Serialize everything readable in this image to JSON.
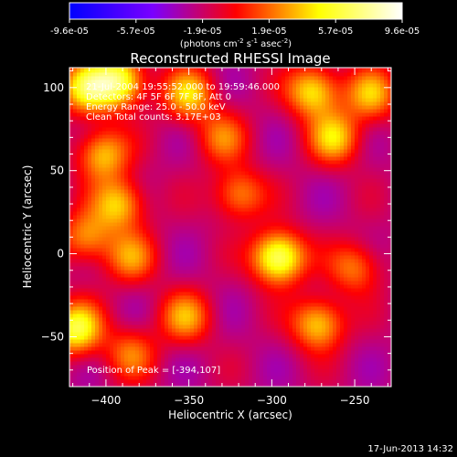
{
  "chart_data": {
    "type": "heatmap",
    "title": "Reconstructed RHESSI Image",
    "xlabel": "Heliocentric X (arcsec)",
    "ylabel": "Heliocentric Y (arcsec)",
    "xlim": [
      -422,
      -228
    ],
    "ylim": [
      -80,
      112
    ],
    "xticks": [
      -400,
      -350,
      -300,
      -250
    ],
    "yticks": [
      -50,
      0,
      50,
      100
    ],
    "colorbar": {
      "ticks": [
        "-9.6e-05",
        "-5.7e-05",
        "-1.9e-05",
        "1.9e-05",
        "5.7e-05",
        "9.6e-05"
      ],
      "units_main": "(photons cm",
      "units_exp1": "-2",
      "units_mid": " s",
      "units_exp2": "-1",
      "units_end": " asec",
      "units_exp3": "-2",
      "units_close": ")",
      "colors": [
        "#0000ff",
        "#7a00ff",
        "#ff0000",
        "#ffff00",
        "#ffffff"
      ]
    },
    "annotations": [
      "21-Jul-2004 19:55:52.000 to 19:59:46.000",
      "Detectors: 4F 5F 6F 7F 8F, Att 0",
      "Energy Range: 25.0 - 50.0 keV",
      "Clean    Total counts: 3.17E+03"
    ],
    "peak_label": "Position of Peak = [-394,107]",
    "peak": [
      -394,
      107
    ],
    "sources": [
      {
        "x": -296,
        "y": -2,
        "v": 9.6e-05
      },
      {
        "x": -392,
        "y": 104,
        "v": 8.5e-05
      },
      {
        "x": -412,
        "y": 100,
        "v": 7e-05
      },
      {
        "x": -402,
        "y": 60,
        "v": 6e-05
      },
      {
        "x": -392,
        "y": 30,
        "v": 6.2e-05
      },
      {
        "x": -350,
        "y": 96,
        "v": 6e-05
      },
      {
        "x": -275,
        "y": 98,
        "v": 7e-05
      },
      {
        "x": -262,
        "y": 70,
        "v": 6e-05
      },
      {
        "x": -240,
        "y": 96,
        "v": 5.5e-05
      },
      {
        "x": -320,
        "y": 36,
        "v": 5e-05
      },
      {
        "x": -385,
        "y": -2,
        "v": 4.5e-05
      },
      {
        "x": -272,
        "y": -42,
        "v": 6.5e-05
      },
      {
        "x": -352,
        "y": -38,
        "v": 5e-05
      },
      {
        "x": -418,
        "y": -45,
        "v": 8e-05
      },
      {
        "x": -412,
        "y": 10,
        "v": 5e-05
      },
      {
        "x": -330,
        "y": 70,
        "v": 4e-05
      },
      {
        "x": -250,
        "y": -8,
        "v": 4.5e-05
      },
      {
        "x": -385,
        "y": -60,
        "v": 4e-05
      }
    ],
    "grid": false,
    "legend": "none"
  },
  "timestamp": "17-Jun-2013 14:32"
}
